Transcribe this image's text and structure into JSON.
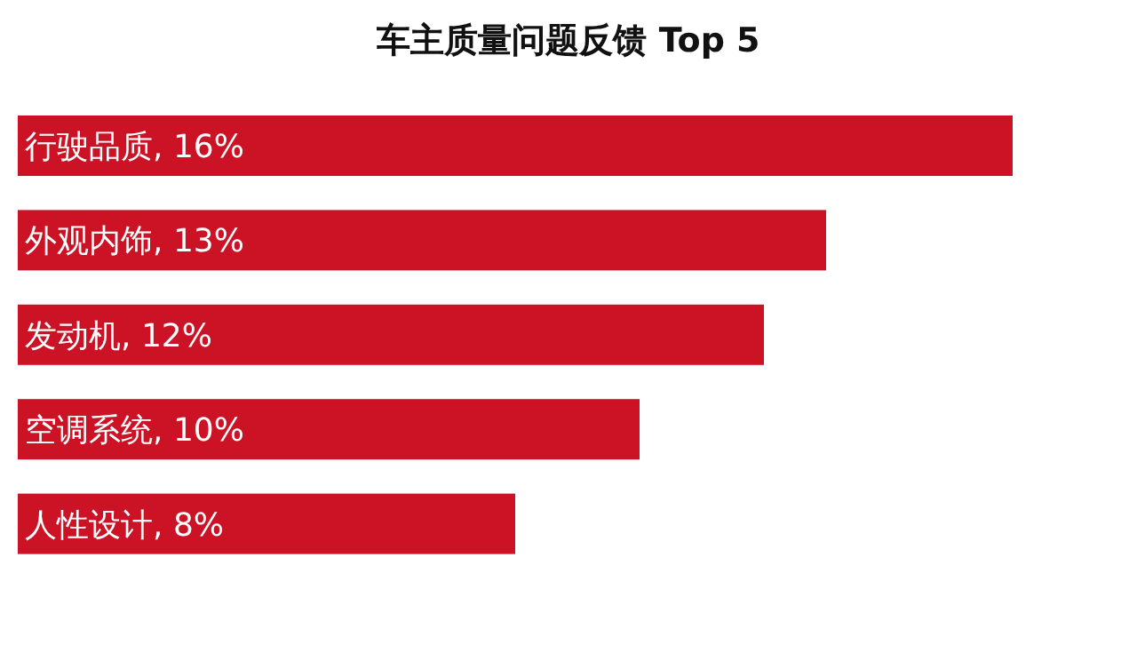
{
  "chart_data": {
    "type": "bar",
    "orientation": "horizontal",
    "title": "车主质量问题反馈 Top 5",
    "categories": [
      "行驶品质",
      "外观内饰",
      "发动机",
      "空调系统",
      "人性设计"
    ],
    "values": [
      16,
      13,
      12,
      10,
      8
    ],
    "value_labels": [
      ", 16%",
      ", 13%",
      ", 12%",
      ", 10%",
      ", 8%"
    ],
    "color": "#cb1325"
  }
}
